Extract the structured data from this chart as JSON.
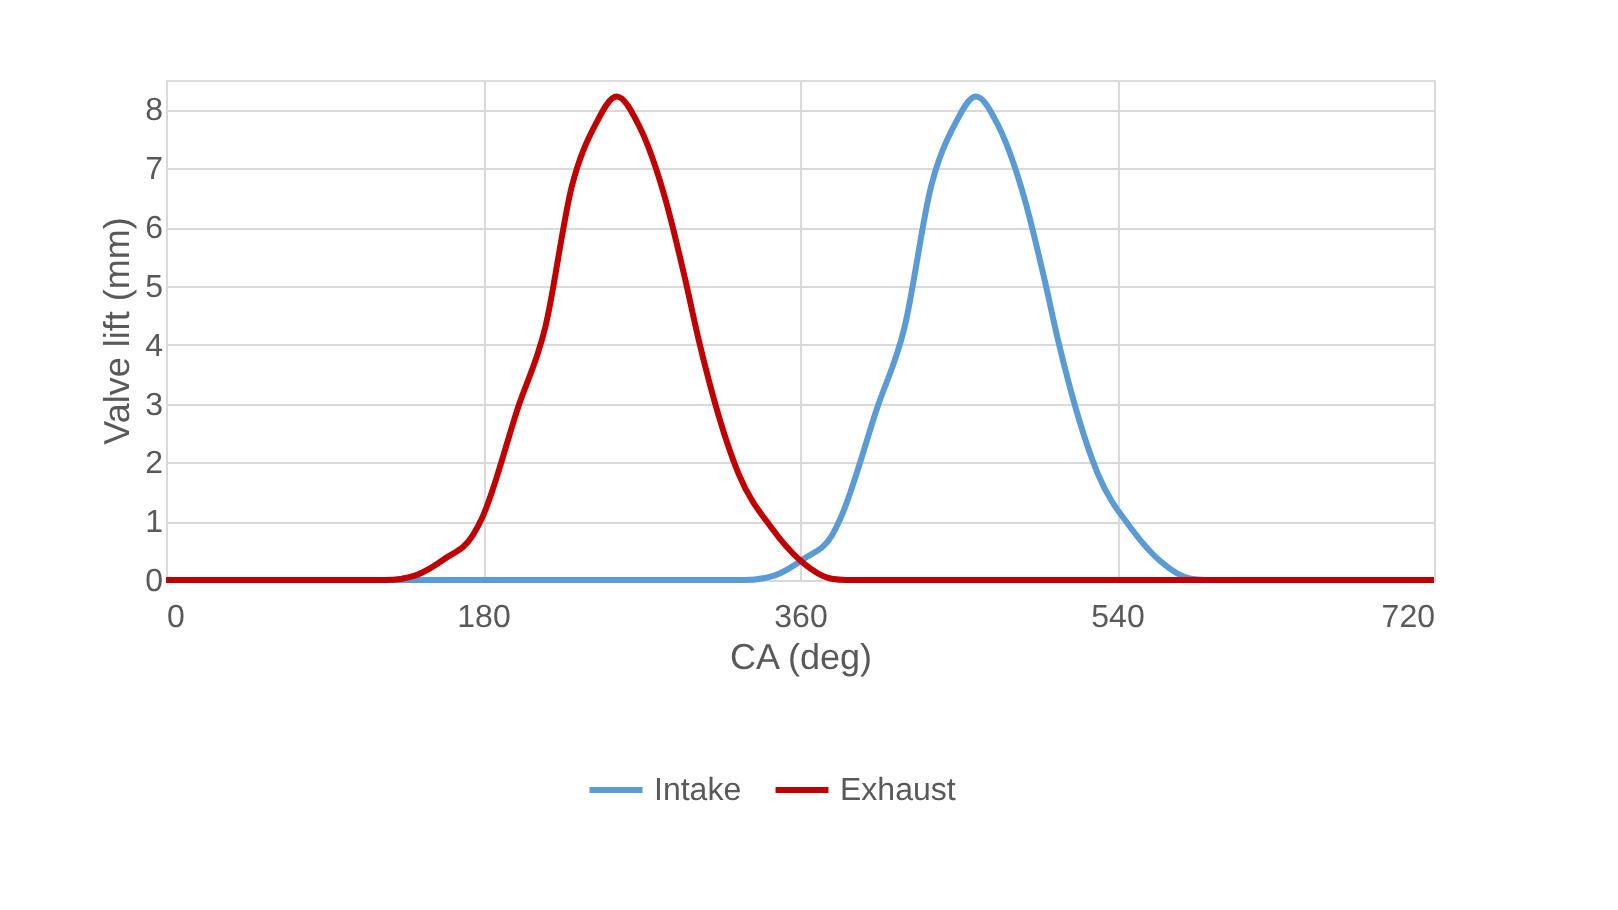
{
  "chart_data": {
    "type": "line",
    "xlabel": "CA (deg)",
    "ylabel": "Valve lift (mm)",
    "xlim": [
      0,
      720
    ],
    "xticks": [
      0,
      180,
      360,
      540,
      720
    ],
    "ylim": [
      0,
      8.5
    ],
    "yticks": [
      0,
      1,
      2,
      3,
      4,
      5,
      6,
      7,
      8
    ],
    "grid": true,
    "legend": "bottom",
    "line_style": "solid",
    "marker": "none",
    "series": [
      {
        "name": "Intake",
        "color": "#5b9bd5",
        "x": [
          0,
          200,
          328.6,
          345.7,
          362.7,
          378,
          383,
          404,
          419.4,
          434.5,
          447.8,
          459.9,
          472.3,
          487.5,
          498.9,
          506.5,
          529.2,
          548,
          565,
          582,
          590,
          720
        ],
        "values": [
          0,
          0,
          0,
          0.08,
          0.37,
          0.75,
          1.05,
          2.94,
          4.3,
          6.7,
          7.74,
          8.22,
          7.74,
          6.48,
          5.1,
          4.08,
          1.8,
          0.88,
          0.31,
          0.02,
          0,
          0
        ]
      },
      {
        "name": "Exhaust",
        "color": "#c00000",
        "x": [
          0,
          124.6,
          141.7,
          158.7,
          174,
          179.4,
          200,
          215.4,
          230.5,
          243.8,
          255.9,
          268.3,
          283.5,
          294.9,
          302.5,
          325.2,
          344,
          361,
          378,
          386,
          720
        ],
        "values": [
          0,
          0,
          0.08,
          0.37,
          0.75,
          1.05,
          2.94,
          4.3,
          6.7,
          7.74,
          8.22,
          7.74,
          6.48,
          5.1,
          4.08,
          1.8,
          0.88,
          0.31,
          0.02,
          0,
          0
        ]
      }
    ]
  }
}
